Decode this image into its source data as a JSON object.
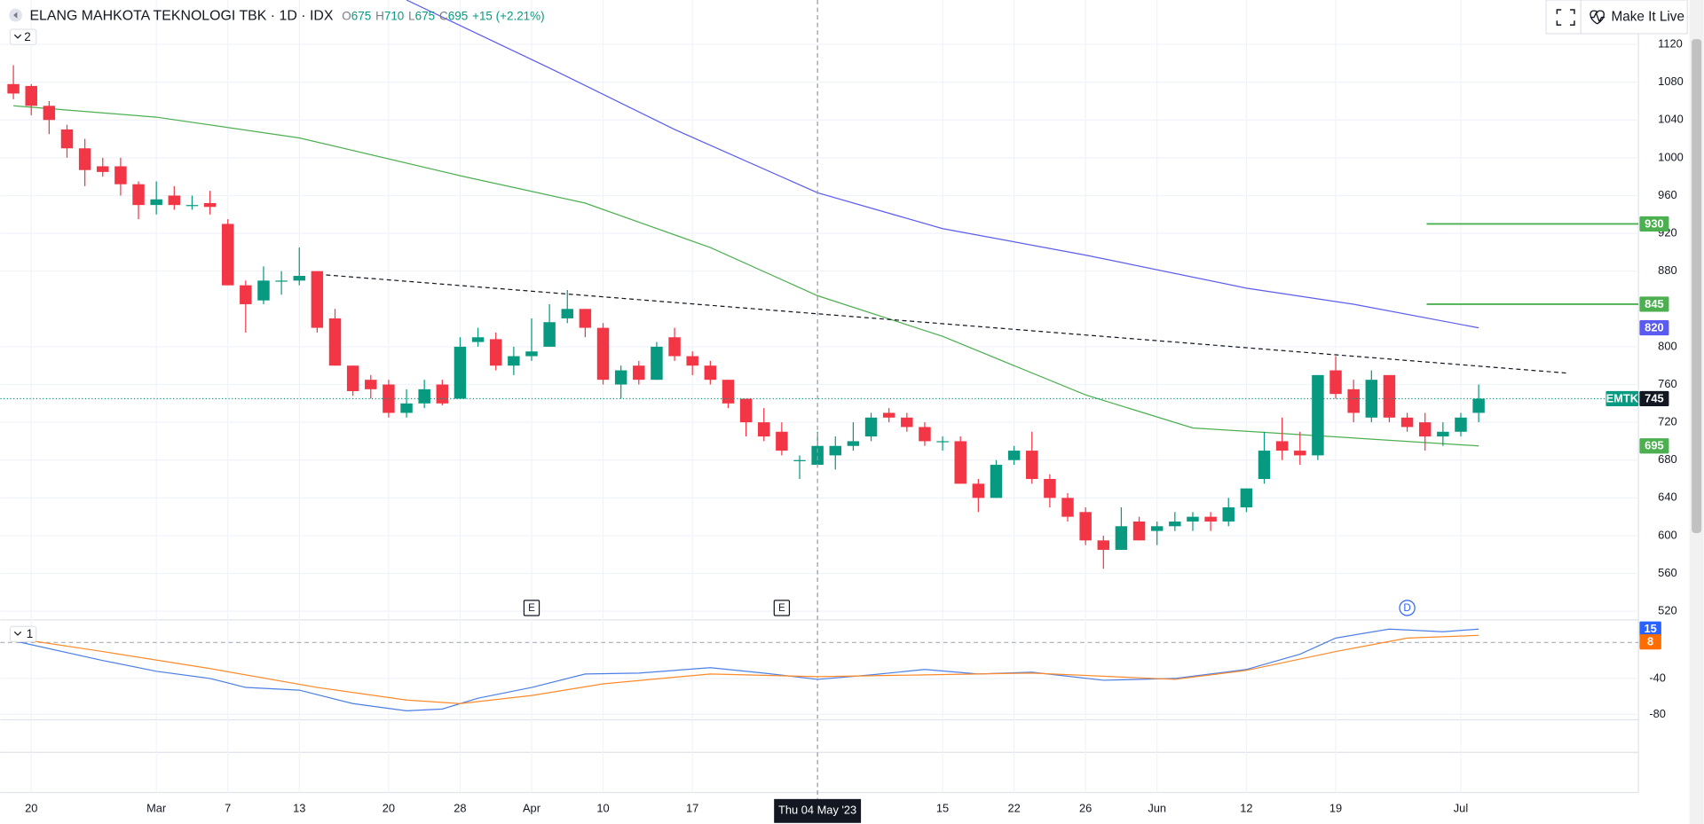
{
  "header": {
    "title": "ELANG MAHKOTA TEKNOLOGI TBK · 1D · IDX",
    "o_label": "O",
    "o": "675",
    "h_label": "H",
    "h": "710",
    "l_label": "L",
    "l": "675",
    "c_label": "C",
    "c": "695",
    "change": "+15 (+2.21%)",
    "pane_count": "2",
    "button": "Make It Live"
  },
  "chart_data": [
    {
      "type": "candlestick",
      "ticker": "EMTK",
      "categories": [
        null,
        "20",
        null,
        null,
        null,
        null,
        null,
        null,
        "Mar",
        null,
        null,
        null,
        "7",
        null,
        null,
        null,
        "13",
        null,
        null,
        null,
        null,
        "20",
        null,
        null,
        null,
        "28",
        null,
        null,
        null,
        "Apr",
        null,
        null,
        null,
        "10",
        null,
        null,
        null,
        null,
        "17",
        null,
        null,
        null,
        null,
        null,
        null,
        null,
        null,
        null,
        null,
        null,
        null,
        null,
        "15",
        null,
        null,
        null,
        "22",
        null,
        null,
        null,
        "26",
        null,
        null,
        null,
        "Jun",
        null,
        null,
        null,
        null,
        "12",
        null,
        null,
        null,
        null,
        "19",
        null,
        null,
        null,
        null,
        null,
        null,
        "Jul",
        null
      ],
      "open": [
        1078,
        1076,
        1055,
        1030,
        1010,
        991,
        991,
        972,
        950,
        960,
        950,
        952,
        930,
        865,
        849,
        870,
        870,
        880,
        830,
        780,
        765,
        760,
        730,
        740,
        760,
        745,
        805,
        808,
        780,
        790,
        800,
        830,
        840,
        820,
        760,
        780,
        765,
        810,
        790,
        780,
        765,
        745,
        720,
        710,
        680,
        675,
        685,
        695,
        705,
        730,
        725,
        715,
        700,
        700,
        655,
        640,
        680,
        690,
        660,
        640,
        625,
        595,
        585,
        615,
        605,
        610,
        615,
        620,
        615,
        630,
        660,
        700,
        690,
        685,
        775,
        755,
        725,
        770,
        725,
        720,
        705,
        710,
        730
      ],
      "high": [
        1098,
        1078,
        1060,
        1035,
        1020,
        1000,
        1000,
        975,
        975,
        970,
        960,
        965,
        935,
        870,
        885,
        880,
        905,
        880,
        840,
        780,
        770,
        765,
        755,
        765,
        765,
        810,
        820,
        815,
        800,
        830,
        845,
        860,
        840,
        825,
        780,
        785,
        805,
        820,
        795,
        785,
        765,
        745,
        735,
        720,
        685,
        710,
        705,
        720,
        730,
        735,
        730,
        720,
        705,
        705,
        660,
        680,
        695,
        710,
        665,
        645,
        630,
        600,
        630,
        620,
        615,
        625,
        625,
        625,
        640,
        650,
        710,
        725,
        710,
        770,
        790,
        765,
        775,
        770,
        730,
        730,
        720,
        730,
        760
      ],
      "low": [
        1062,
        1045,
        1025,
        1000,
        970,
        980,
        960,
        935,
        940,
        945,
        945,
        940,
        865,
        815,
        845,
        855,
        865,
        815,
        780,
        748,
        745,
        725,
        725,
        735,
        738,
        745,
        800,
        775,
        770,
        785,
        800,
        825,
        810,
        760,
        745,
        760,
        765,
        785,
        770,
        760,
        735,
        705,
        700,
        685,
        660,
        675,
        670,
        690,
        700,
        720,
        710,
        695,
        690,
        655,
        625,
        640,
        675,
        655,
        630,
        615,
        590,
        565,
        585,
        595,
        590,
        605,
        605,
        605,
        610,
        625,
        655,
        680,
        675,
        680,
        745,
        720,
        720,
        720,
        710,
        690,
        695,
        705,
        720
      ],
      "close": [
        1068,
        1055,
        1040,
        1010,
        987,
        985,
        972,
        950,
        956,
        950,
        950,
        948,
        865,
        845,
        870,
        870,
        875,
        820,
        780,
        753,
        755,
        730,
        740,
        755,
        740,
        800,
        810,
        780,
        790,
        795,
        826,
        840,
        820,
        765,
        775,
        765,
        800,
        790,
        780,
        765,
        740,
        720,
        705,
        690,
        680,
        695,
        695,
        700,
        725,
        725,
        715,
        700,
        700,
        655,
        640,
        675,
        690,
        660,
        640,
        620,
        595,
        585,
        610,
        595,
        610,
        615,
        620,
        615,
        630,
        650,
        690,
        690,
        685,
        770,
        750,
        730,
        765,
        725,
        715,
        705,
        710,
        725,
        745
      ],
      "up_color": "#089981",
      "down_color": "#f23645",
      "ylim": [
        512,
        1167
      ],
      "yticks": [
        520,
        560,
        600,
        640,
        680,
        720,
        760,
        800,
        880,
        920,
        960,
        1000,
        1040,
        1080,
        1120
      ],
      "grid": true,
      "overlays": [
        {
          "color": "#5b5bf0",
          "x": [
            22,
            30,
            37,
            45,
            52,
            60,
            69,
            75,
            82
          ],
          "values": [
            1167,
            1095,
            1030,
            963,
            925,
            897,
            862,
            845,
            820
          ]
        },
        {
          "color": "#4caf50",
          "x": [
            0,
            8,
            16,
            25,
            32,
            39,
            45,
            52,
            60,
            66,
            72,
            82
          ],
          "values": [
            1055,
            1043,
            1021,
            981,
            952,
            905,
            854,
            811,
            749,
            714,
            707,
            695
          ]
        }
      ],
      "trendline": {
        "x": [
          17.5,
          87
        ],
        "values": [
          876,
          772
        ]
      },
      "levels": [
        {
          "value": 930,
          "color": "#4caf50"
        },
        {
          "value": 845,
          "color": "#4caf50"
        }
      ],
      "events": [
        {
          "label": "E",
          "x": 29
        },
        {
          "label": "E",
          "x": 43
        },
        {
          "label": "D",
          "x": 78
        }
      ],
      "crosshair_x": 45,
      "crosshair_label": "Thu 04 May '23"
    },
    {
      "type": "line",
      "pane_count": "1",
      "ylim": [
        -86,
        24
      ],
      "yticks": [
        -40,
        -80
      ],
      "zero_line": 0,
      "x": [
        0,
        5,
        8,
        11,
        13,
        16,
        19,
        22,
        24,
        26,
        29,
        32,
        35,
        39,
        42,
        45,
        48,
        51,
        54,
        57,
        61,
        65,
        69,
        72,
        74,
        77,
        80,
        82
      ],
      "series": [
        {
          "color": "#4c7fe6",
          "x": [
            0,
            5,
            8,
            11,
            13,
            16,
            19,
            22,
            24,
            26,
            29,
            32,
            35,
            39,
            42,
            45,
            48,
            51,
            54,
            57,
            61,
            65,
            69,
            72,
            74,
            77,
            80,
            82
          ],
          "values": [
            2,
            -20,
            -32,
            -40,
            -50,
            -53,
            -68,
            -76,
            -74,
            -62,
            -50,
            -35,
            -34,
            -28,
            -34,
            -41,
            -36,
            -30,
            -35,
            -33,
            -42,
            -40,
            -30,
            -13,
            5,
            15,
            12,
            15
          ],
          "tag_color": "#2962ff"
        },
        {
          "color": "#ff8a2a",
          "x": [
            0,
            5,
            11,
            17,
            22,
            25,
            29,
            33,
            39,
            45,
            51,
            57,
            65,
            69,
            74,
            78,
            82
          ],
          "values": [
            5,
            -10,
            -29,
            -50,
            -64,
            -68,
            -59,
            -46,
            -35,
            -38,
            -36,
            -34,
            -41,
            -31,
            -10,
            5,
            8
          ],
          "tag_color": "#ff6d00"
        }
      ]
    }
  ]
}
